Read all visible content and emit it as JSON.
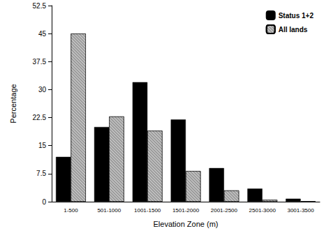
{
  "chart_data": {
    "type": "bar",
    "x_label": "Elevation Zone (m)",
    "y_label": "Percentage",
    "categories": [
      "1-500",
      "501-1000",
      "1001-1500",
      "1501-2000",
      "2001-2500",
      "2501-3000",
      "3001-3500"
    ],
    "series": [
      {
        "name": "Status 1+2",
        "color": "#000000",
        "values": [
          12,
          20,
          32,
          22,
          9,
          3.5,
          0.8
        ]
      },
      {
        "name": "All lands",
        "color": "#9a9a9a",
        "values": [
          45,
          22.8,
          19,
          8.2,
          3,
          0.5,
          0.1
        ]
      }
    ],
    "ylim": [
      0,
      52.5
    ],
    "yticks": [
      0,
      7.5,
      15,
      22.5,
      30,
      37.5,
      45,
      52.5
    ],
    "grid": false,
    "legend": "upper right"
  }
}
